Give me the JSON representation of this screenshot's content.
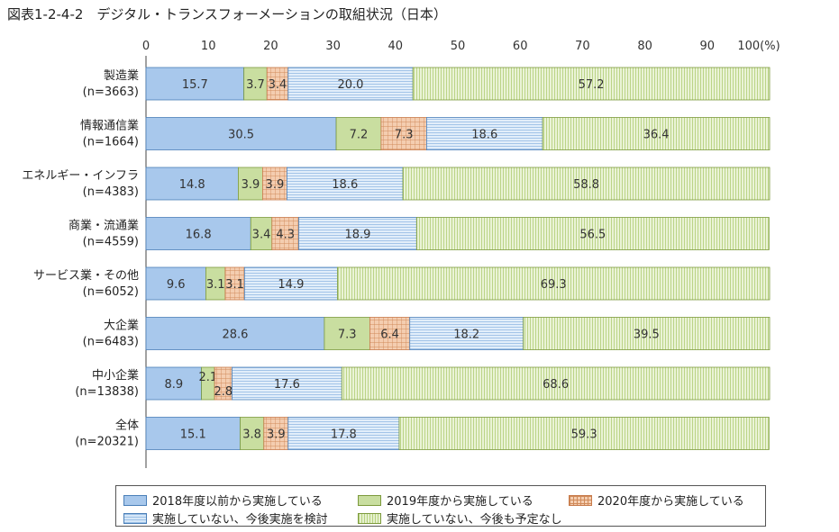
{
  "title": "図表1-2-4-2　デジタル・トランスフォーメーションの取組状況（日本）",
  "chart_data": {
    "type": "bar",
    "orientation": "horizontal",
    "stacked": true,
    "xlim": [
      0,
      100
    ],
    "x_ticks": [
      "0",
      "10",
      "20",
      "30",
      "40",
      "50",
      "60",
      "70",
      "80",
      "90",
      "100(%)"
    ],
    "categories": [
      {
        "name": "製造業",
        "n": "(n=3663)"
      },
      {
        "name": "情報通信業",
        "n": "(n=1664)"
      },
      {
        "name": "エネルギー・インフラ",
        "n": "(n=4383)"
      },
      {
        "name": "商業・流通業",
        "n": "(n=4559)"
      },
      {
        "name": "サービス業・その他",
        "n": "(n=6052)"
      },
      {
        "name": "大企業",
        "n": "(n=6483)"
      },
      {
        "name": "中小企業",
        "n": "(n=13838)"
      },
      {
        "name": "全体",
        "n": "(n=20321)"
      }
    ],
    "series": [
      {
        "name": "2018年度以前から実施している",
        "color": "#a8c8ec",
        "values": [
          15.7,
          30.5,
          14.8,
          16.8,
          9.6,
          28.6,
          8.9,
          15.1
        ]
      },
      {
        "name": "2019年度から実施している",
        "color": "#c9dea0",
        "values": [
          3.7,
          7.2,
          3.9,
          3.4,
          3.1,
          7.3,
          2.1,
          3.8
        ]
      },
      {
        "name": "2020年度から実施している",
        "color": "#f4cdb0",
        "values": [
          3.4,
          7.3,
          3.9,
          4.3,
          3.1,
          6.4,
          2.8,
          3.9
        ]
      },
      {
        "name": "実施していない、今後実施を検討",
        "color": "#d7e8f8",
        "values": [
          20.0,
          18.6,
          18.6,
          18.9,
          14.9,
          18.2,
          17.6,
          17.8
        ]
      },
      {
        "name": "実施していない、今後も予定なし",
        "color": "#e6f1cf",
        "values": [
          57.2,
          36.4,
          58.8,
          56.5,
          69.3,
          39.5,
          68.6,
          59.3
        ]
      }
    ],
    "legend_position": "bottom",
    "grid": false
  }
}
